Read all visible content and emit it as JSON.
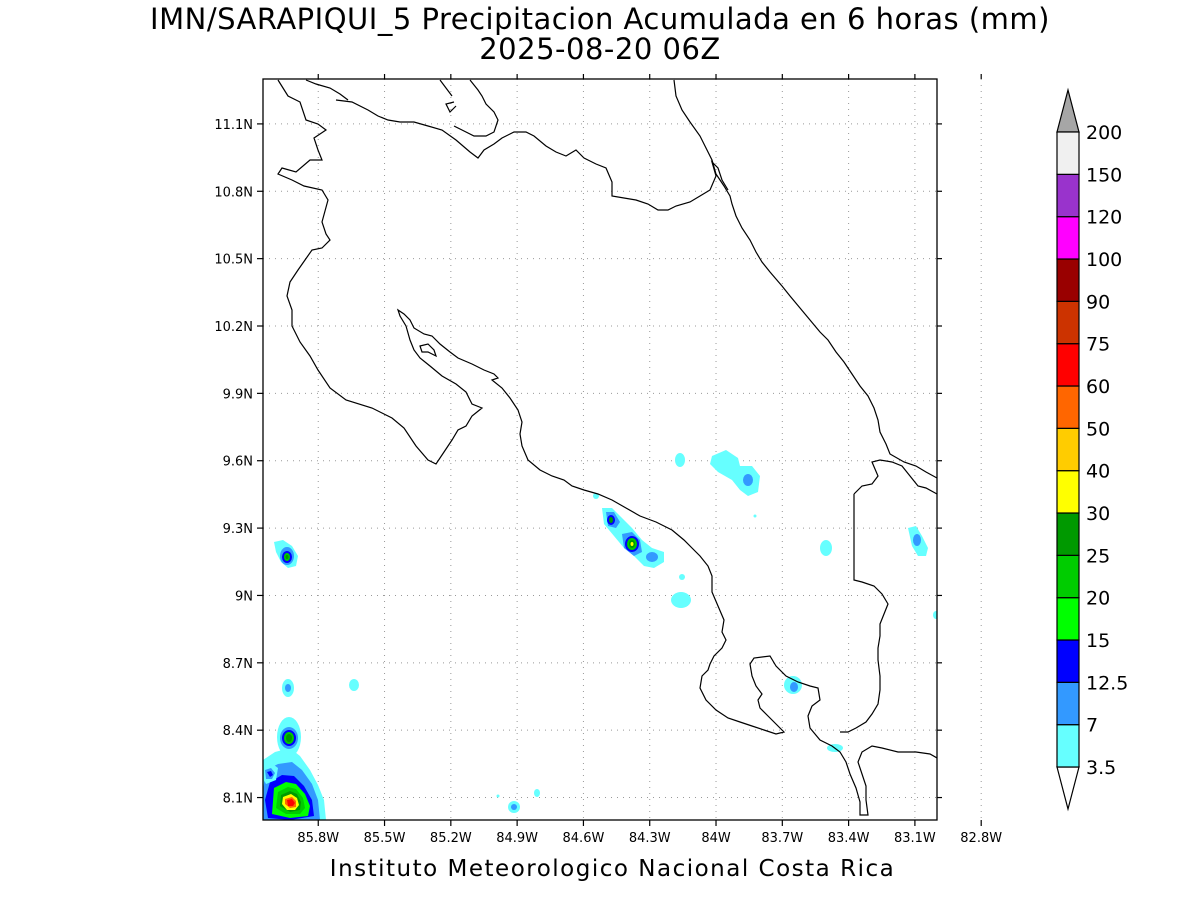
{
  "title": {
    "line1": "IMN/SARAPIQUI_5 Precipitacion Acumulada en 6 horas (mm)",
    "line2": "2025-08-20 06Z"
  },
  "credit": "Instituto Meteorologico Nacional Costa Rica",
  "map": {
    "lon_range": [
      -86.05,
      -83.0
    ],
    "lat_range": [
      8.0,
      11.3
    ],
    "lon_ticks": [
      {
        "value": -85.8,
        "label": "85.8W"
      },
      {
        "value": -85.5,
        "label": "85.5W"
      },
      {
        "value": -85.2,
        "label": "85.2W"
      },
      {
        "value": -84.9,
        "label": "84.9W"
      },
      {
        "value": -84.6,
        "label": "84.6W"
      },
      {
        "value": -84.3,
        "label": "84.3W"
      },
      {
        "value": -84.0,
        "label": "84W"
      },
      {
        "value": -83.7,
        "label": "83.7W"
      },
      {
        "value": -83.4,
        "label": "83.4W"
      },
      {
        "value": -83.1,
        "label": "83.1W"
      },
      {
        "value": -82.8,
        "label": "82.8W"
      }
    ],
    "lat_ticks": [
      {
        "value": 8.1,
        "label": "8.1N"
      },
      {
        "value": 8.4,
        "label": "8.4N"
      },
      {
        "value": 8.7,
        "label": "8.7N"
      },
      {
        "value": 9.0,
        "label": "9N"
      },
      {
        "value": 9.3,
        "label": "9.3N"
      },
      {
        "value": 9.6,
        "label": "9.6N"
      },
      {
        "value": 9.9,
        "label": "9.9N"
      },
      {
        "value": 10.2,
        "label": "10.2N"
      },
      {
        "value": 10.5,
        "label": "10.5N"
      },
      {
        "value": 10.8,
        "label": "10.8N"
      },
      {
        "value": 11.1,
        "label": "11.1N"
      }
    ],
    "grid": true,
    "grid_style": "dotted"
  },
  "colorbar": {
    "orientation": "vertical",
    "placement": "right",
    "levels": [
      {
        "label": "3.5",
        "color": "#66ffff"
      },
      {
        "label": "7",
        "color": "#3399ff"
      },
      {
        "label": "12.5",
        "color": "#0000ff"
      },
      {
        "label": "15",
        "color": "#00ff00"
      },
      {
        "label": "20",
        "color": "#00cc00"
      },
      {
        "label": "25",
        "color": "#009900"
      },
      {
        "label": "30",
        "color": "#ffff00"
      },
      {
        "label": "40",
        "color": "#ffcc00"
      },
      {
        "label": "50",
        "color": "#ff6600"
      },
      {
        "label": "60",
        "color": "#ff0000"
      },
      {
        "label": "75",
        "color": "#cc3300"
      },
      {
        "label": "90",
        "color": "#990000"
      },
      {
        "label": "100",
        "color": "#ff00ff"
      },
      {
        "label": "120",
        "color": "#9933cc"
      },
      {
        "label": "150",
        "color": "#f0f0f0"
      },
      {
        "label": "200",
        "color": null
      }
    ],
    "lower_extension_color": "#ffffff",
    "upper_extension_color": "#a6a6a6"
  }
}
